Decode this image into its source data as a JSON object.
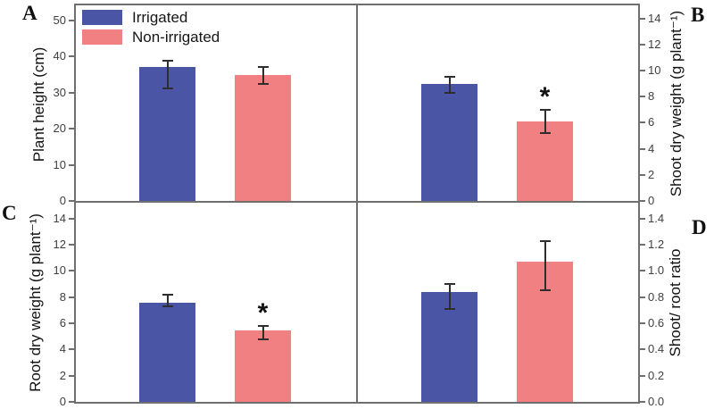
{
  "figure": {
    "significance_marker": "*",
    "colors": {
      "irrigated": "#4B55A5",
      "non_irrigated": "#F08081",
      "axis": "#6F6F6F",
      "error_bar": "#2E2E2E"
    },
    "legend": {
      "items": [
        {
          "label": "Irrigated",
          "color": "#4B55A5"
        },
        {
          "label": "Non-irrigated",
          "color": "#F08081"
        }
      ]
    }
  },
  "chart_data": [
    {
      "type": "bar",
      "panel": "A",
      "ylabel": "Plant height (cm)",
      "axis_side": "left",
      "ylim": [
        0,
        54.2
      ],
      "tick_values": [
        0,
        10,
        20,
        30,
        40,
        50
      ],
      "tick_labels": [
        "0",
        "10",
        "20",
        "30",
        "40",
        "50"
      ],
      "categories": [
        "Irrigated",
        "Non-irrigated"
      ],
      "series": [
        {
          "name": "Irrigated",
          "color": "#4B55A5",
          "value": 37.0,
          "whisker_top": 38.8,
          "whisker_bottom": 31.2,
          "significant": false
        },
        {
          "name": "Non-irrigated",
          "color": "#F08081",
          "value": 35.0,
          "whisker_top": 37.1,
          "whisker_bottom": 32.4,
          "significant": false
        }
      ]
    },
    {
      "type": "bar",
      "panel": "B",
      "ylabel": "Shoot dry weight (g plant⁻¹)",
      "axis_side": "right",
      "ylim": [
        0,
        15.0
      ],
      "tick_values": [
        0,
        2,
        4,
        6,
        8,
        10,
        12,
        14
      ],
      "tick_labels": [
        "0",
        "2",
        "4",
        "6",
        "8",
        "10",
        "12",
        "14"
      ],
      "categories": [
        "Irrigated",
        "Non-irrigated"
      ],
      "series": [
        {
          "name": "Irrigated",
          "color": "#4B55A5",
          "value": 9.0,
          "whisker_top": 9.5,
          "whisker_bottom": 8.3,
          "significant": false
        },
        {
          "name": "Non-irrigated",
          "color": "#F08081",
          "value": 6.1,
          "whisker_top": 7.0,
          "whisker_bottom": 5.2,
          "significant": true
        }
      ]
    },
    {
      "type": "bar",
      "panel": "C",
      "ylabel": "Root dry weight (g plant⁻¹)",
      "axis_side": "left",
      "ylim": [
        0,
        15.2
      ],
      "tick_values": [
        0,
        2,
        4,
        6,
        8,
        10,
        12,
        14
      ],
      "tick_labels": [
        "0",
        "2",
        "4",
        "6",
        "8",
        "10",
        "12",
        "14"
      ],
      "categories": [
        "Irrigated",
        "Non-irrigated"
      ],
      "series": [
        {
          "name": "Irrigated",
          "color": "#4B55A5",
          "value": 7.6,
          "whisker_top": 8.2,
          "whisker_bottom": 7.3,
          "significant": false
        },
        {
          "name": "Non-irrigated",
          "color": "#F08081",
          "value": 5.45,
          "whisker_top": 5.8,
          "whisker_bottom": 4.8,
          "significant": true
        }
      ]
    },
    {
      "type": "bar",
      "panel": "D",
      "ylabel": "Shoot/ root ratio",
      "axis_side": "right",
      "ylim": [
        0,
        1.52
      ],
      "tick_values": [
        0,
        0.2,
        0.4,
        0.6,
        0.8,
        1.0,
        1.2,
        1.4
      ],
      "tick_labels": [
        "0.0",
        "0.2",
        "0.4",
        "0.6",
        "0.8",
        "1.0",
        "1.2",
        "1.4"
      ],
      "categories": [
        "Irrigated",
        "Non-irrigated"
      ],
      "series": [
        {
          "name": "Irrigated",
          "color": "#4B55A5",
          "value": 0.84,
          "whisker_top": 0.9,
          "whisker_bottom": 0.71,
          "significant": false
        },
        {
          "name": "Non-irrigated",
          "color": "#F08081",
          "value": 1.07,
          "whisker_top": 1.23,
          "whisker_bottom": 0.85,
          "significant": false
        }
      ]
    }
  ]
}
